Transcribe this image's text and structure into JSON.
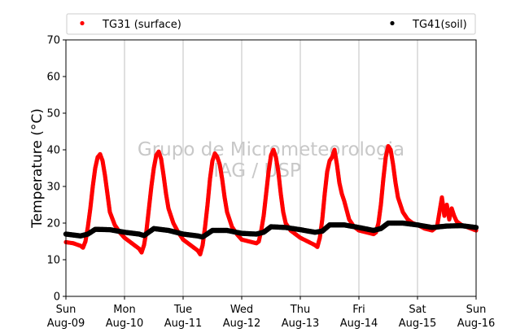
{
  "chart_data": {
    "type": "scatter",
    "ylabel": "Temperature (°C)",
    "xlabel": "",
    "ylim": [
      0,
      70
    ],
    "yticks": [
      0,
      10,
      20,
      30,
      40,
      50,
      60,
      70
    ],
    "xlim": [
      "2020-08-09 00:00",
      "2020-08-16 00:00"
    ],
    "xticks": [
      {
        "day": "Sun",
        "date": "Aug-09"
      },
      {
        "day": "Mon",
        "date": "Aug-10"
      },
      {
        "day": "Tue",
        "date": "Aug-11"
      },
      {
        "day": "Wed",
        "date": "Aug-12"
      },
      {
        "day": "Thu",
        "date": "Aug-13"
      },
      {
        "day": "Fri",
        "date": "Aug-14"
      },
      {
        "day": "Sat",
        "date": "Aug-15"
      },
      {
        "day": "Sun",
        "date": "Aug-16"
      }
    ],
    "grid": "vertical",
    "legend_position": "top",
    "watermark": [
      "Grupo de Micrometeorologia",
      "IAG / USP"
    ],
    "series": [
      {
        "name": "TG31 (surface)",
        "color": "#ff0000",
        "points": [
          [
            "2020-08-09 00:00",
            14.8
          ],
          [
            "2020-08-09 03:00",
            14.5
          ],
          [
            "2020-08-09 06:00",
            13.8
          ],
          [
            "2020-08-09 07:00",
            13.3
          ],
          [
            "2020-08-09 08:00",
            15.0
          ],
          [
            "2020-08-09 09:00",
            19.0
          ],
          [
            "2020-08-09 10:00",
            24.0
          ],
          [
            "2020-08-09 11:00",
            30.0
          ],
          [
            "2020-08-09 12:00",
            35.0
          ],
          [
            "2020-08-09 13:00",
            38.0
          ],
          [
            "2020-08-09 14:00",
            38.8
          ],
          [
            "2020-08-09 15:00",
            37.0
          ],
          [
            "2020-08-09 16:00",
            33.0
          ],
          [
            "2020-08-09 17:00",
            28.0
          ],
          [
            "2020-08-09 18:00",
            23.0
          ],
          [
            "2020-08-09 20:00",
            19.5
          ],
          [
            "2020-08-09 22:00",
            17.5
          ],
          [
            "2020-08-10 00:00",
            16.0
          ],
          [
            "2020-08-10 03:00",
            14.5
          ],
          [
            "2020-08-10 06:00",
            13.0
          ],
          [
            "2020-08-10 07:00",
            12.0
          ],
          [
            "2020-08-10 08:00",
            14.0
          ],
          [
            "2020-08-10 09:00",
            18.0
          ],
          [
            "2020-08-10 10:00",
            24.0
          ],
          [
            "2020-08-10 11:00",
            30.0
          ],
          [
            "2020-08-10 12:00",
            35.0
          ],
          [
            "2020-08-10 13:00",
            38.5
          ],
          [
            "2020-08-10 14:00",
            39.5
          ],
          [
            "2020-08-10 15:00",
            37.5
          ],
          [
            "2020-08-10 16:00",
            33.0
          ],
          [
            "2020-08-10 17:00",
            28.0
          ],
          [
            "2020-08-10 18:00",
            24.0
          ],
          [
            "2020-08-10 20:00",
            20.0
          ],
          [
            "2020-08-10 22:00",
            17.5
          ],
          [
            "2020-08-11 00:00",
            15.5
          ],
          [
            "2020-08-11 03:00",
            14.0
          ],
          [
            "2020-08-11 06:00",
            12.5
          ],
          [
            "2020-08-11 07:00",
            11.5
          ],
          [
            "2020-08-11 08:00",
            14.0
          ],
          [
            "2020-08-11 09:00",
            19.0
          ],
          [
            "2020-08-11 10:00",
            25.0
          ],
          [
            "2020-08-11 11:00",
            32.0
          ],
          [
            "2020-08-11 12:00",
            37.0
          ],
          [
            "2020-08-11 13:00",
            39.0
          ],
          [
            "2020-08-11 14:00",
            38.0
          ],
          [
            "2020-08-11 15:00",
            36.0
          ],
          [
            "2020-08-11 16:00",
            32.0
          ],
          [
            "2020-08-11 17:00",
            27.0
          ],
          [
            "2020-08-11 18:00",
            23.0
          ],
          [
            "2020-08-11 20:00",
            19.0
          ],
          [
            "2020-08-11 22:00",
            17.0
          ],
          [
            "2020-08-12 00:00",
            15.5
          ],
          [
            "2020-08-12 03:00",
            15.0
          ],
          [
            "2020-08-12 06:00",
            14.5
          ],
          [
            "2020-08-12 07:00",
            15.0
          ],
          [
            "2020-08-12 08:00",
            18.0
          ],
          [
            "2020-08-12 09:00",
            22.0
          ],
          [
            "2020-08-12 10:00",
            28.0
          ],
          [
            "2020-08-12 11:00",
            34.0
          ],
          [
            "2020-08-12 12:00",
            38.5
          ],
          [
            "2020-08-12 13:00",
            40.0
          ],
          [
            "2020-08-12 14:00",
            38.0
          ],
          [
            "2020-08-12 15:00",
            34.0
          ],
          [
            "2020-08-12 16:00",
            28.0
          ],
          [
            "2020-08-12 17:00",
            23.0
          ],
          [
            "2020-08-12 18:00",
            20.0
          ],
          [
            "2020-08-12 20:00",
            18.0
          ],
          [
            "2020-08-12 22:00",
            17.0
          ],
          [
            "2020-08-13 00:00",
            16.0
          ],
          [
            "2020-08-13 03:00",
            15.0
          ],
          [
            "2020-08-13 06:00",
            14.0
          ],
          [
            "2020-08-13 07:00",
            13.5
          ],
          [
            "2020-08-13 08:00",
            16.0
          ],
          [
            "2020-08-13 09:00",
            21.0
          ],
          [
            "2020-08-13 10:00",
            28.0
          ],
          [
            "2020-08-13 11:00",
            34.0
          ],
          [
            "2020-08-13 12:00",
            37.0
          ],
          [
            "2020-08-13 13:00",
            38.0
          ],
          [
            "2020-08-13 14:00",
            40.0
          ],
          [
            "2020-08-13 15:00",
            36.0
          ],
          [
            "2020-08-13 16:00",
            31.0
          ],
          [
            "2020-08-13 17:00",
            28.0
          ],
          [
            "2020-08-13 18:00",
            26.0
          ],
          [
            "2020-08-13 20:00",
            21.0
          ],
          [
            "2020-08-13 22:00",
            19.0
          ],
          [
            "2020-08-14 00:00",
            18.0
          ],
          [
            "2020-08-14 03:00",
            17.5
          ],
          [
            "2020-08-14 06:00",
            17.0
          ],
          [
            "2020-08-14 07:00",
            17.5
          ],
          [
            "2020-08-14 08:00",
            20.0
          ],
          [
            "2020-08-14 09:00",
            25.0
          ],
          [
            "2020-08-14 10:00",
            32.0
          ],
          [
            "2020-08-14 11:00",
            38.0
          ],
          [
            "2020-08-14 12:00",
            41.0
          ],
          [
            "2020-08-14 13:00",
            40.0
          ],
          [
            "2020-08-14 14:00",
            36.0
          ],
          [
            "2020-08-14 15:00",
            31.0
          ],
          [
            "2020-08-14 16:00",
            27.0
          ],
          [
            "2020-08-14 18:00",
            23.0
          ],
          [
            "2020-08-14 20:00",
            21.0
          ],
          [
            "2020-08-14 22:00",
            20.0
          ],
          [
            "2020-08-15 00:00",
            19.5
          ],
          [
            "2020-08-15 03:00",
            18.5
          ],
          [
            "2020-08-15 06:00",
            18.0
          ],
          [
            "2020-08-15 08:00",
            19.0
          ],
          [
            "2020-08-15 09:00",
            23.0
          ],
          [
            "2020-08-15 10:00",
            27.0
          ],
          [
            "2020-08-15 11:00",
            22.0
          ],
          [
            "2020-08-15 12:00",
            25.0
          ],
          [
            "2020-08-15 13:00",
            21.0
          ],
          [
            "2020-08-15 14:00",
            24.0
          ],
          [
            "2020-08-15 15:00",
            22.0
          ],
          [
            "2020-08-15 16:00",
            20.5
          ],
          [
            "2020-08-15 18:00",
            19.5
          ],
          [
            "2020-08-15 20:00",
            19.0
          ],
          [
            "2020-08-15 22:00",
            18.5
          ],
          [
            "2020-08-16 00:00",
            18.0
          ]
        ]
      },
      {
        "name": "TG41(soil)",
        "color": "#000000",
        "points": [
          [
            "2020-08-09 00:00",
            17.0
          ],
          [
            "2020-08-09 06:00",
            16.5
          ],
          [
            "2020-08-09 09:00",
            17.0
          ],
          [
            "2020-08-09 12:00",
            18.3
          ],
          [
            "2020-08-09 18:00",
            18.2
          ],
          [
            "2020-08-10 00:00",
            17.5
          ],
          [
            "2020-08-10 06:00",
            17.0
          ],
          [
            "2020-08-10 08:00",
            16.6
          ],
          [
            "2020-08-10 12:00",
            18.5
          ],
          [
            "2020-08-10 18:00",
            18.0
          ],
          [
            "2020-08-11 00:00",
            17.0
          ],
          [
            "2020-08-11 06:00",
            16.5
          ],
          [
            "2020-08-11 08:00",
            16.2
          ],
          [
            "2020-08-11 12:00",
            18.0
          ],
          [
            "2020-08-11 18:00",
            18.0
          ],
          [
            "2020-08-12 00:00",
            17.2
          ],
          [
            "2020-08-12 06:00",
            17.0
          ],
          [
            "2020-08-12 09:00",
            17.5
          ],
          [
            "2020-08-12 12:00",
            19.0
          ],
          [
            "2020-08-12 18:00",
            18.8
          ],
          [
            "2020-08-13 00:00",
            18.2
          ],
          [
            "2020-08-13 06:00",
            17.5
          ],
          [
            "2020-08-13 09:00",
            17.8
          ],
          [
            "2020-08-13 12:00",
            19.5
          ],
          [
            "2020-08-13 18:00",
            19.5
          ],
          [
            "2020-08-14 00:00",
            18.8
          ],
          [
            "2020-08-14 06:00",
            18.0
          ],
          [
            "2020-08-14 09:00",
            18.5
          ],
          [
            "2020-08-14 12:00",
            20.0
          ],
          [
            "2020-08-14 18:00",
            20.0
          ],
          [
            "2020-08-15 00:00",
            19.5
          ],
          [
            "2020-08-15 06:00",
            18.8
          ],
          [
            "2020-08-15 12:00",
            19.2
          ],
          [
            "2020-08-15 18:00",
            19.3
          ],
          [
            "2020-08-16 00:00",
            18.8
          ]
        ]
      }
    ]
  }
}
